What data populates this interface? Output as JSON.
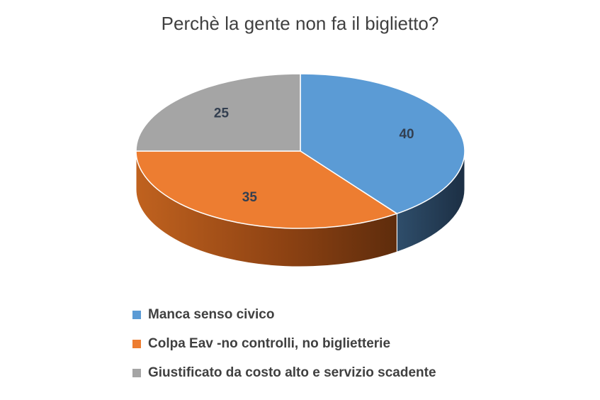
{
  "chart_data": {
    "type": "pie",
    "title": "Perchè la gente non fa il biglietto?",
    "categories": [
      "Manca senso civico",
      "Colpa Eav -no controlli, no biglietterie",
      "Giustificato da costo alto e servizio scadente"
    ],
    "values": [
      40,
      35,
      25
    ],
    "data_labels": [
      "40",
      "35",
      "25"
    ],
    "colors": [
      "#5b9bd5",
      "#ed7d31",
      "#a5a5a5"
    ],
    "style": "3d",
    "legend_position": "bottom"
  }
}
